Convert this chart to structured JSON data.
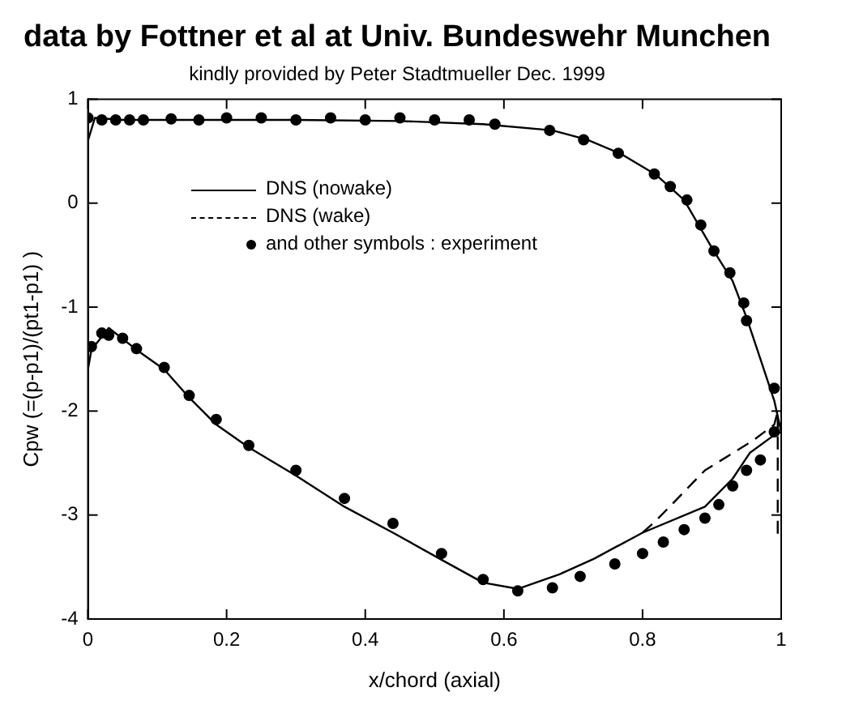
{
  "chart_data": {
    "type": "line",
    "title": "data by Fottner et al at Univ. Bundeswehr Munchen",
    "subtitle": "kindly provided by Peter Stadtmueller Dec. 1999",
    "xlabel": "x/chord (axial)",
    "ylabel": "Cpw (=(p-p1)/(pt1-p1) )",
    "xlim": [
      0,
      1
    ],
    "xticks": [
      0,
      0.2,
      0.4,
      0.6,
      0.8,
      1
    ],
    "ylim": [
      -4,
      1
    ],
    "yticks": [
      -4,
      -3,
      -2,
      -1,
      0,
      1
    ],
    "grid": false,
    "legend": "top left",
    "series": [
      {
        "name": "DNS (nowake)",
        "type": "line",
        "color": "#000000",
        "line_style": "solid",
        "marker": "none",
        "x": [
          1.0,
          0.99,
          0.97,
          0.95,
          0.93,
          0.9,
          0.86,
          0.82,
          0.77,
          0.72,
          0.67,
          0.57,
          0.45,
          0.3,
          0.15,
          0.05,
          0.01,
          0.0,
          null,
          0.0,
          0.005,
          0.03,
          0.07,
          0.11,
          0.146,
          0.185,
          0.232,
          0.3,
          0.37,
          0.44,
          0.51,
          0.57,
          0.62,
          0.68,
          0.73,
          0.8,
          0.89,
          0.93,
          0.955,
          0.99,
          1.0
        ],
        "values": [
          -2.2,
          -1.9,
          -1.5,
          -1.1,
          -0.75,
          -0.43,
          0.03,
          0.27,
          0.47,
          0.61,
          0.7,
          0.76,
          0.79,
          0.8,
          0.8,
          0.8,
          0.82,
          0.6,
          null,
          -1.6,
          -1.41,
          -1.2,
          -1.41,
          -1.6,
          -1.87,
          -2.13,
          -2.35,
          -2.62,
          -2.92,
          -3.17,
          -3.43,
          -3.65,
          -3.71,
          -3.57,
          -3.42,
          -3.17,
          -2.92,
          -2.65,
          -2.4,
          -2.23,
          -2.2
        ]
      },
      {
        "name": "DNS (wake)",
        "type": "line",
        "color": "#000000",
        "line_style": "dashed",
        "marker": "none",
        "x": [
          0.8,
          0.82,
          0.89,
          0.96,
          0.99,
          0.995,
          0.995
        ],
        "values": [
          -3.17,
          -3.05,
          -2.57,
          -2.28,
          -2.13,
          -2.0,
          -3.2
        ]
      },
      {
        "name": "and other symbols : experiment",
        "type": "scatter",
        "color": "#000000",
        "marker": "circle",
        "x": [
          0.0,
          0.02,
          0.04,
          0.06,
          0.08,
          0.12,
          0.16,
          0.2,
          0.25,
          0.3,
          0.35,
          0.4,
          0.45,
          0.5,
          0.55,
          0.587,
          0.666,
          0.715,
          0.765,
          0.817,
          0.84,
          0.864,
          0.884,
          0.903,
          0.926,
          0.946,
          0.95,
          0.99,
          0.005,
          0.02,
          0.03,
          0.05,
          0.07,
          0.11,
          0.146,
          0.185,
          0.232,
          0.3,
          0.37,
          0.44,
          0.51,
          0.57,
          0.62,
          0.67,
          0.71,
          0.76,
          0.8,
          0.83,
          0.86,
          0.89,
          0.91,
          0.93,
          0.95,
          0.97,
          0.99
        ],
        "values": [
          0.82,
          0.8,
          0.8,
          0.8,
          0.8,
          0.81,
          0.8,
          0.82,
          0.82,
          0.8,
          0.82,
          0.8,
          0.82,
          0.8,
          0.8,
          0.76,
          0.7,
          0.61,
          0.48,
          0.28,
          0.16,
          0.03,
          -0.21,
          -0.46,
          -0.67,
          -0.96,
          -1.13,
          -1.78,
          -1.38,
          -1.25,
          -1.27,
          -1.3,
          -1.4,
          -1.58,
          -1.85,
          -2.08,
          -2.33,
          -2.57,
          -2.84,
          -3.08,
          -3.37,
          -3.62,
          -3.73,
          -3.7,
          -3.59,
          -3.47,
          -3.37,
          -3.26,
          -3.14,
          -3.03,
          -2.9,
          -2.72,
          -2.57,
          -2.47,
          -2.2
        ]
      }
    ]
  }
}
